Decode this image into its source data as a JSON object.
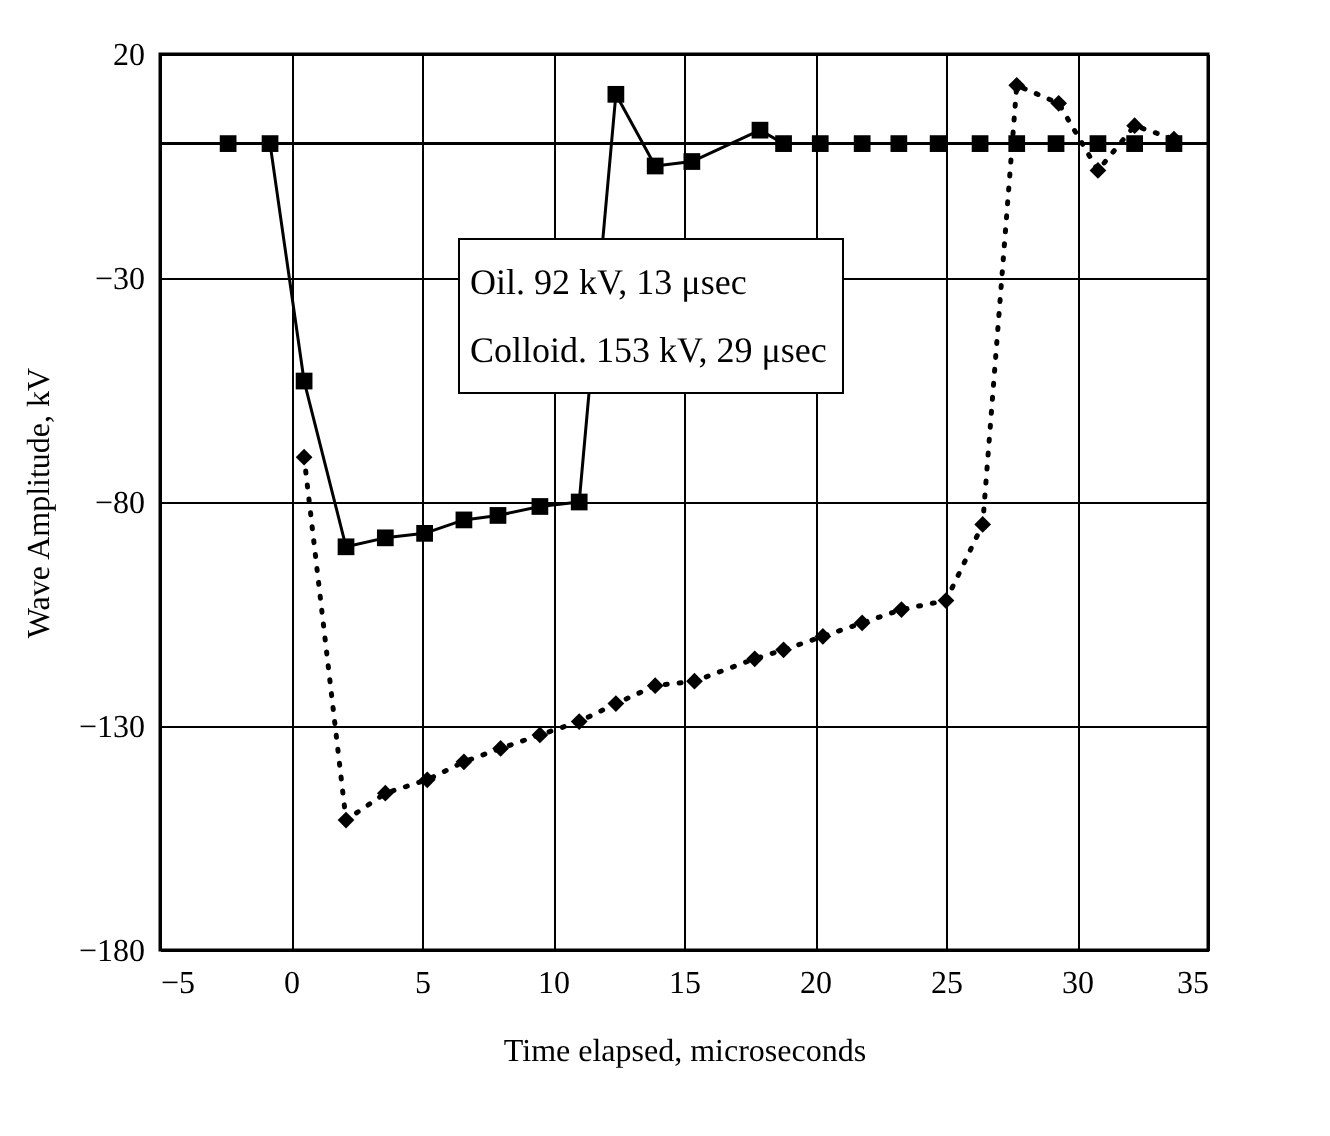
{
  "chart_data": {
    "type": "line",
    "xlabel": "Time elapsed, microseconds",
    "ylabel": "Wave Amplitude, kV",
    "annotations": [
      "Oil. 92 kV, 13 μsec",
      "Colloid. 153 kV, 29 μsec"
    ],
    "xlim": [
      -5,
      35
    ],
    "xticks": [
      -5,
      0,
      5,
      10,
      15,
      20,
      25,
      30,
      35
    ],
    "ylim": [
      -180,
      20
    ],
    "yticks": [
      20,
      -30,
      -80,
      -130,
      -180
    ],
    "grid": true,
    "ref_lines": [
      {
        "axis": "y",
        "value": 0,
        "label": null,
        "color": "#000000"
      }
    ],
    "series": [
      {
        "color": "#000000",
        "marker": "square",
        "line_style": "solid",
        "x": [
          -2.4,
          -0.8,
          0.5,
          2.1,
          3.6,
          5.1,
          6.6,
          7.9,
          9.5,
          11,
          12.4,
          13.9,
          15.3,
          17.9,
          18.8,
          20.2,
          21.8,
          23.2,
          24.7,
          26.3,
          27.7,
          29.2,
          30.8,
          32.2,
          33.7
        ],
        "values": [
          0,
          0,
          -53,
          -90,
          -88,
          -87,
          -84,
          -83,
          -81,
          -80,
          11,
          -5,
          -4,
          3,
          0,
          0,
          0,
          0,
          0,
          0,
          0,
          0,
          0,
          0,
          0
        ]
      },
      {
        "color": "#000000",
        "marker": "diamond",
        "line_style": "dotted",
        "x": [
          0.5,
          2.1,
          3.6,
          5.2,
          6.6,
          8,
          9.5,
          11,
          12.4,
          13.9,
          15.4,
          17.7,
          18.8,
          20.3,
          21.8,
          23.3,
          25,
          26.4,
          27.7,
          29.3,
          30.8,
          32.2,
          33.7
        ],
        "values": [
          -70,
          -151,
          -145,
          -142,
          -138,
          -135,
          -132,
          -129,
          -125,
          -121,
          -120,
          -115,
          -113,
          -110,
          -107,
          -104,
          -102,
          -85,
          13,
          9,
          -6,
          4,
          1
        ]
      }
    ]
  }
}
